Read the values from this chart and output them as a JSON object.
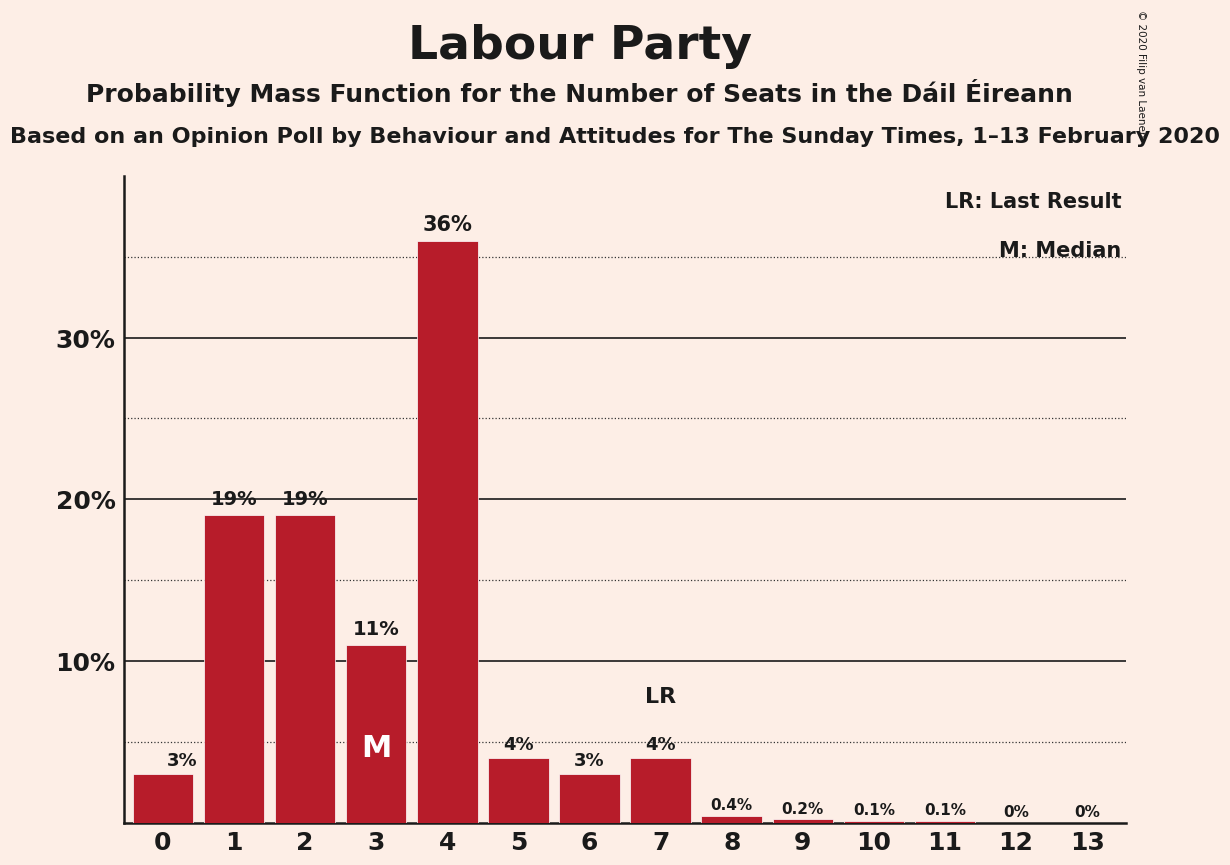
{
  "title": "Labour Party",
  "subtitle": "Probability Mass Function for the Number of Seats in the Dáil Éireann",
  "sub_subtitle": "Based on an Opinion Poll by Behaviour and Attitudes for The Sunday Times, 1–13 February 2020",
  "copyright": "© 2020 Filip van Laenen",
  "categories": [
    0,
    1,
    2,
    3,
    4,
    5,
    6,
    7,
    8,
    9,
    10,
    11,
    12,
    13
  ],
  "values": [
    3,
    19,
    19,
    11,
    36,
    4,
    3,
    4,
    0.4,
    0.2,
    0.1,
    0.1,
    0,
    0
  ],
  "value_labels": [
    "3%",
    "19%",
    "19%",
    "11%",
    "36%",
    "4%",
    "3%",
    "4%",
    "0.4%",
    "0.2%",
    "0.1%",
    "0.1%",
    "0%",
    "0%"
  ],
  "bar_color": "#b71c2a",
  "background_color": "#fdeee6",
  "median_bar": 3,
  "lr_bar": 7,
  "yticks": [
    0,
    10,
    20,
    30
  ],
  "ytick_labels": [
    "",
    "10%",
    "20%",
    "30%"
  ],
  "dotted_lines": [
    5,
    15,
    25,
    35
  ],
  "solid_lines": [
    10,
    20,
    30
  ],
  "ylim": [
    0,
    40
  ],
  "legend_lr": "LR: Last Result",
  "legend_m": "M: Median",
  "title_fontsize": 34,
  "subtitle_fontsize": 18,
  "sub_subtitle_fontsize": 16
}
